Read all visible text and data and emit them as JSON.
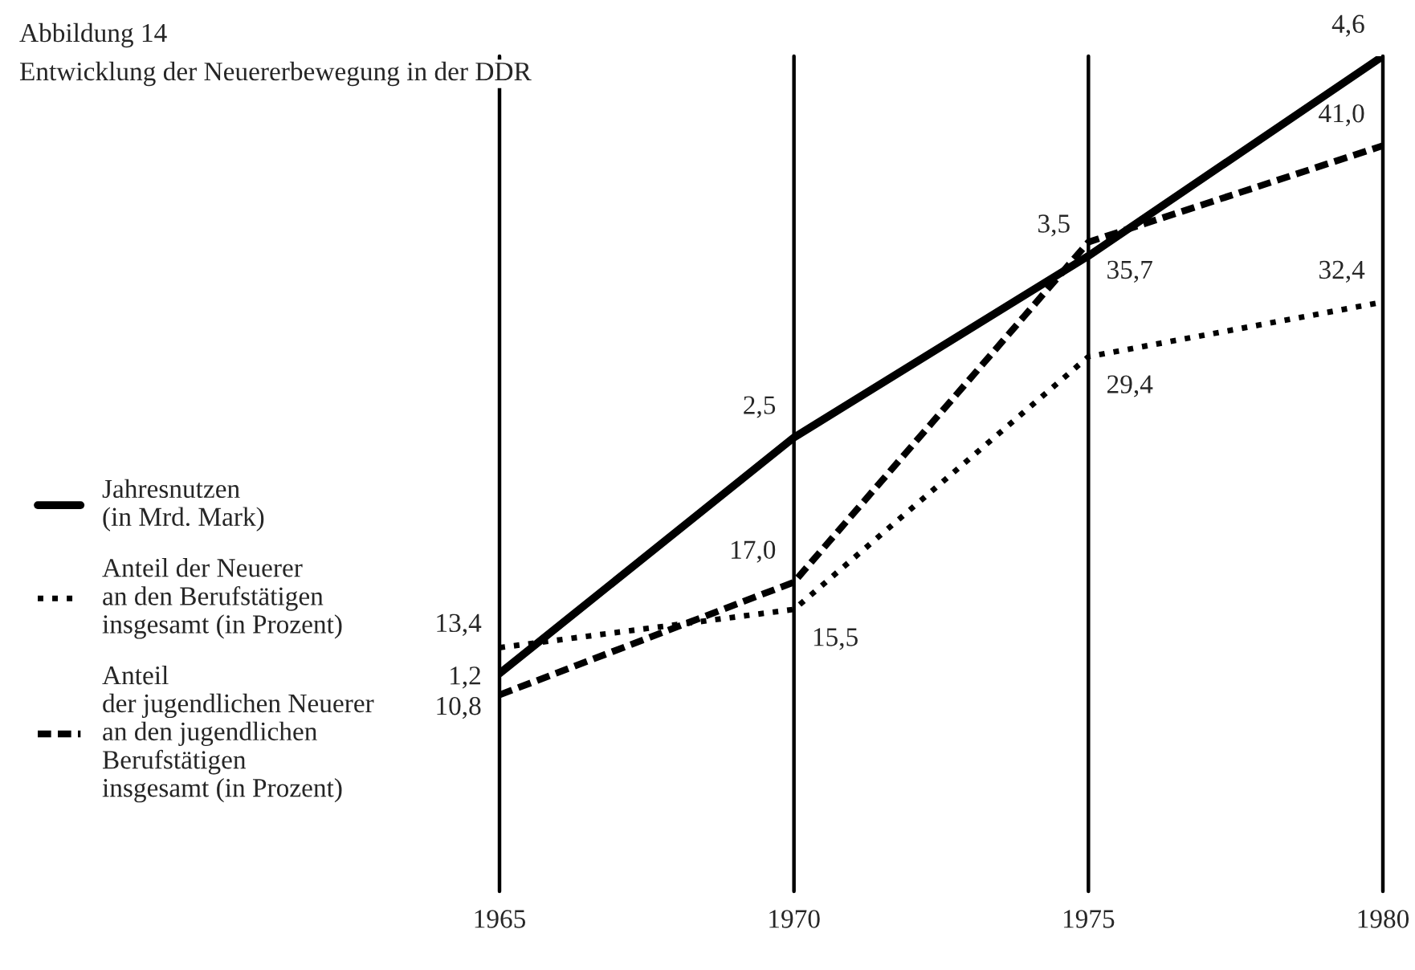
{
  "chart_data": {
    "type": "line",
    "title": "Abbildung 14",
    "subtitle": "Entwicklung der Neuererbewegung in der DDR",
    "x": [
      1965,
      1970,
      1975,
      1980
    ],
    "xlim": [
      1965,
      1980
    ],
    "xticks": [
      1965,
      1970,
      1975,
      1980
    ],
    "tick_labels": "x",
    "grid": "x",
    "legend": "left",
    "series": [
      {
        "name": "Jahresnutzen\n(in Mrd. Mark)",
        "color": "#000000",
        "axis": "y2",
        "line_style": "solid",
        "values": [
          1.2,
          2.5,
          3.5,
          4.6
        ],
        "value_labels": [
          "1,2",
          "2,5",
          "3,5",
          "4,6"
        ]
      },
      {
        "name": "Anteil der Neuerer\nan den Berufstätigen\ninsgesamt (in Prozent)",
        "color": "#000000",
        "line_style": "dotted",
        "values": [
          13.4,
          15.5,
          29.4,
          32.4
        ],
        "value_labels": [
          "13,4",
          "15,5",
          "29,4",
          "32,4"
        ]
      },
      {
        "name": "Anteil\nder jugendlichen Neuerer\nan den jugendlichen\nBerufstätigen\ninsgesamt (in Prozent)",
        "color": "#000000",
        "line_style": "dashed",
        "values": [
          10.8,
          17.0,
          35.7,
          41.0
        ],
        "value_labels": [
          "10,8",
          "17,0",
          "35,7",
          "41,0"
        ]
      }
    ]
  }
}
